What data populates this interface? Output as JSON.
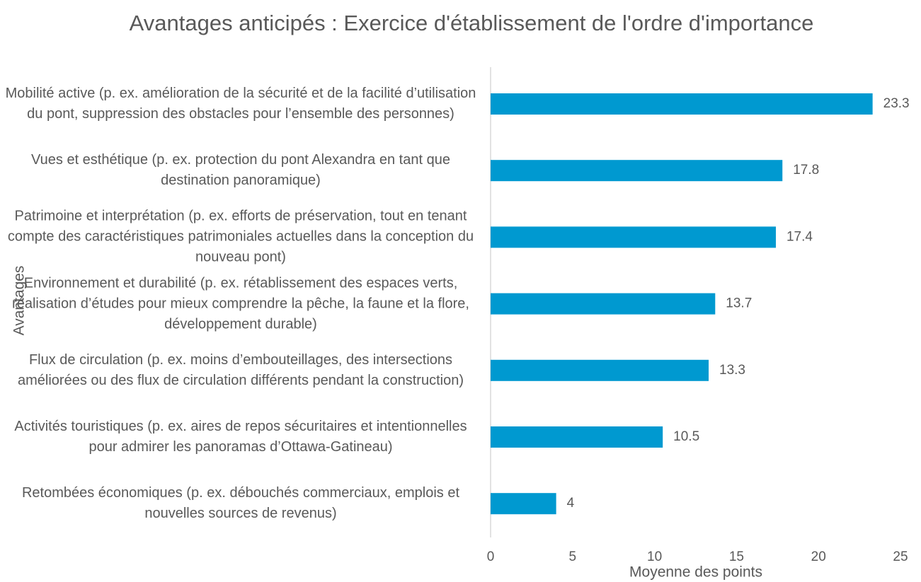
{
  "chart_data": {
    "type": "barh",
    "title": "Avantages anticipés : Exercice d'établissement de l'ordre d'importance",
    "categories": [
      "Mobilité active (p. ex. amélioration de la sécurité et de la facilité d’utilisation du pont, suppression des obstacles pour l’ensemble des personnes)",
      "Vues et esthétique (p. ex. protection du pont Alexandra en tant que destination panoramique)",
      "Patrimoine et interprétation (p. ex. efforts de préservation, tout en tenant compte des caractéristiques patrimoniales actuelles dans la conception du nouveau pont)",
      "Environnement et durabilité (p. ex. rétablissement des espaces verts, réalisation d’études pour mieux comprendre la pêche, la faune et la flore, développement durable)",
      "Flux de circulation (p. ex. moins d’embouteillages, des intersections améliorées ou des flux de circulation différents pendant la construction)",
      "Activités touristiques (p. ex. aires de repos sécuritaires et intentionnelles pour admirer les panoramas d’Ottawa-Gatineau)",
      "Retombées économiques (p. ex. débouchés commerciaux, emplois et nouvelles sources de revenus)"
    ],
    "values": [
      23.3,
      17.8,
      17.4,
      13.7,
      13.3,
      10.5,
      4
    ],
    "color": "#0099d0",
    "xlim": [
      0,
      25
    ],
    "xticks": [
      0,
      5,
      10,
      15,
      20,
      25
    ],
    "x_label": "Moyenne des points",
    "y_label": "Avantages"
  }
}
